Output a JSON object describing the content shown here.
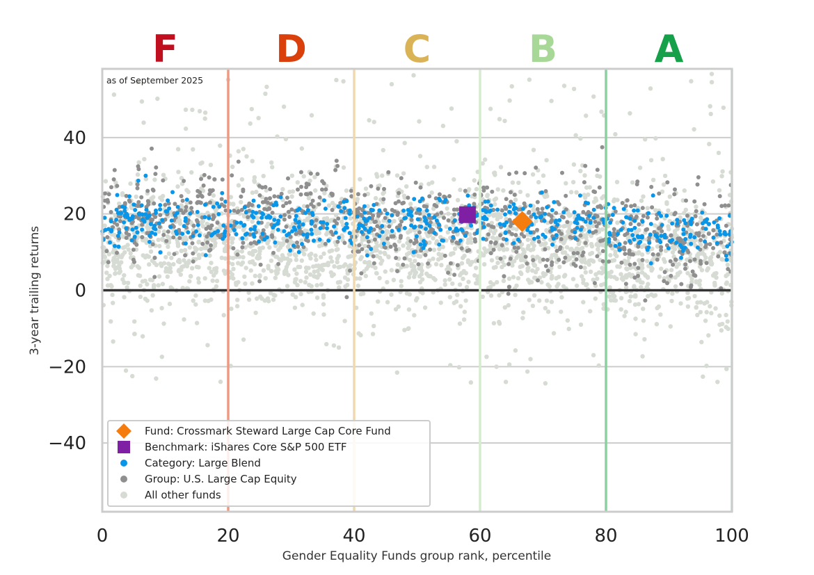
{
  "chart_data": {
    "type": "scatter",
    "note": "as of September 2025",
    "xlabel": "Gender Equality Funds group rank, percentile",
    "ylabel": "3-year trailing returns",
    "xlim": [
      0,
      100
    ],
    "ylim": [
      -58,
      58
    ],
    "x_ticks": [
      0,
      20,
      40,
      60,
      80,
      100
    ],
    "y_ticks": [
      -40,
      -20,
      0,
      20,
      40
    ],
    "grid": "horizontal",
    "legend_placement": "lower-left",
    "grade_bands": [
      {
        "label": "F",
        "from": 0,
        "to": 20,
        "color": "#c0101f",
        "line_color": "#ee9a82"
      },
      {
        "label": "D",
        "from": 20,
        "to": 40,
        "color": "#d9400c",
        "line_color": "#f0d9ae"
      },
      {
        "label": "C",
        "from": 40,
        "to": 60,
        "color": "#d9b356",
        "line_color": "#d6eccf"
      },
      {
        "label": "B",
        "from": 60,
        "to": 80,
        "color": "#a8d898",
        "line_color": "#8ccfa0"
      },
      {
        "label": "A",
        "from": 80,
        "to": 100,
        "color": "#17a04a",
        "line_color": "#c7e6d0"
      }
    ],
    "series": [
      {
        "name": "Fund: Crossmark Steward Large Cap Core Fund",
        "marker": "diamond",
        "color": "#f57c0e",
        "points": [
          [
            66.7,
            18
          ]
        ]
      },
      {
        "name": "Benchmark: iShares Core S&P 500 ETF",
        "marker": "square",
        "color": "#7f1fa3",
        "points": [
          [
            58.0,
            19.8
          ]
        ]
      },
      {
        "name": "Category: Large Blend",
        "marker": "dot",
        "color": "#0996e8",
        "band": [
          5,
          30
        ],
        "center": 18,
        "spread": 3.5,
        "count": 520,
        "seed": 11
      },
      {
        "name": "Group: U.S. Large Cap Equity",
        "marker": "dot",
        "color": "#8f8f8f",
        "band": [
          -5,
          42
        ],
        "center": 17,
        "spread": 6,
        "count": 900,
        "seed": 23
      },
      {
        "name": "All other funds",
        "marker": "dot",
        "color": "#d6dbd3",
        "band": [
          -25,
          57
        ],
        "center": 12,
        "spread": 8,
        "count": 2400,
        "seed": 37
      }
    ]
  }
}
